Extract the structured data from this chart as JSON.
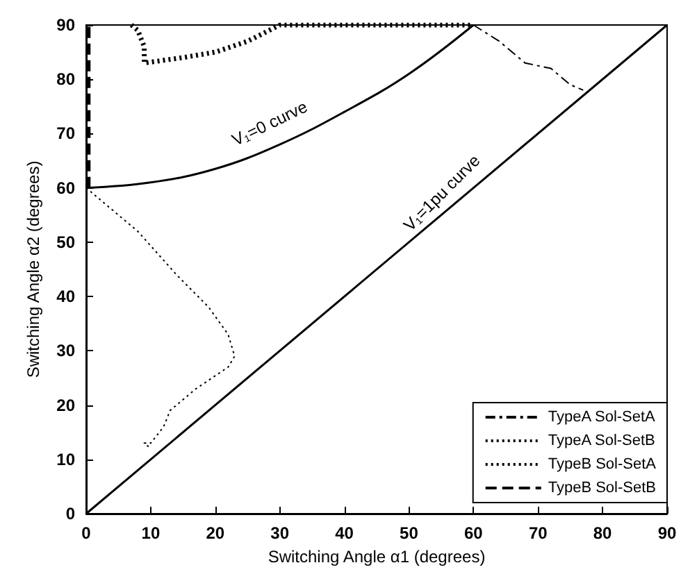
{
  "chart_data": {
    "type": "line",
    "xlabel": "Switching Angle α1 (degrees)",
    "ylabel": "Switching Angle α2 (degrees)",
    "xlim": [
      0,
      90
    ],
    "ylim": [
      0,
      90
    ],
    "xticks": [
      0,
      10,
      20,
      30,
      40,
      50,
      60,
      70,
      80,
      90
    ],
    "yticks": [
      0,
      10,
      20,
      30,
      40,
      50,
      60,
      70,
      80,
      90
    ],
    "grid": false,
    "legend": "bottom right",
    "marker": "none",
    "series": [
      {
        "color": "#000000",
        "line_style": "solid",
        "x": [
          0,
          10,
          20,
          30,
          40,
          50,
          60
        ],
        "values": [
          60,
          61,
          63.5,
          68,
          74,
          81,
          90
        ]
      },
      {
        "color": "#000000",
        "line_style": "solid",
        "x": [
          0,
          90
        ],
        "values": [
          0,
          90
        ]
      },
      {
        "name": "TypeA Sol-SetA",
        "color": "#000000",
        "line_style": "dashdot",
        "x": [
          60,
          64,
          68,
          72,
          75,
          77
        ],
        "values": [
          90,
          87,
          83,
          82,
          79,
          78
        ]
      },
      {
        "name": "TypeA Sol-SetB",
        "color": "#000000",
        "line_style": "dotted",
        "x": [
          0,
          8,
          14,
          19,
          22,
          23,
          22,
          17,
          13,
          12,
          10,
          9,
          10
        ],
        "values": [
          60,
          52,
          44,
          38,
          33,
          29,
          27,
          23,
          19,
          16,
          13,
          13,
          12
        ]
      },
      {
        "name": "TypeB Sol-SetA",
        "color": "#000000",
        "line_style": "dotted",
        "x": [
          7,
          8,
          9,
          9,
          15,
          20,
          25,
          30,
          60
        ],
        "values": [
          90,
          89,
          86,
          83,
          84,
          85,
          87,
          90,
          90
        ]
      },
      {
        "name": "TypeB Sol-SetB",
        "color": "#000000",
        "line_style": "dashed",
        "x": [
          0.3,
          0.3
        ],
        "values": [
          60,
          90
        ]
      }
    ],
    "annotations": [
      "V₁=0 curve",
      "V₁=1pu curve"
    ]
  }
}
